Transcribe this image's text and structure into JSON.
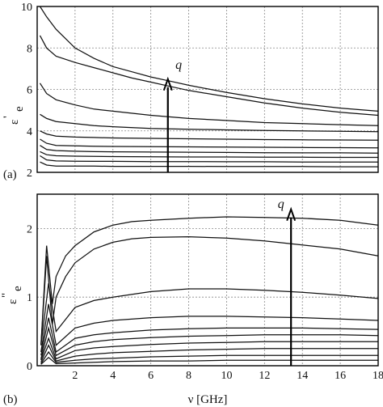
{
  "chart_data": [
    {
      "type": "line",
      "panel_label": "(a)",
      "ylabel_main": "ε",
      "ylabel_sup": "'",
      "ylabel_sub": "e",
      "xlim": [
        0,
        18
      ],
      "ylim": [
        2,
        10
      ],
      "xticks": [
        2,
        4,
        6,
        8,
        10,
        12,
        14,
        16,
        18
      ],
      "yticks": [
        2,
        4,
        6,
        8,
        10
      ],
      "grid": true,
      "annotation": {
        "text": "q",
        "arrow_x": 6.9,
        "arrow_y_from": 2.0,
        "arrow_y_to": 6.5,
        "label_x": 7.3,
        "label_y": 7.0
      },
      "series": [
        {
          "x": [
            0.15,
            0.5,
            1.0,
            2.0,
            3.0,
            4.0,
            5.0,
            6.0,
            7.0,
            8.0,
            10.0,
            12.0,
            14.0,
            16.0,
            18.0
          ],
          "values": [
            10.0,
            9.5,
            8.9,
            8.0,
            7.5,
            7.1,
            6.85,
            6.6,
            6.4,
            6.2,
            5.85,
            5.55,
            5.3,
            5.1,
            4.95
          ]
        },
        {
          "x": [
            0.15,
            0.5,
            1.0,
            2.0,
            3.0,
            4.0,
            5.0,
            6.0,
            7.0,
            8.0,
            10.0,
            12.0,
            14.0,
            16.0,
            18.0
          ],
          "values": [
            8.6,
            8.0,
            7.6,
            7.3,
            7.05,
            6.8,
            6.55,
            6.35,
            6.15,
            5.95,
            5.65,
            5.35,
            5.1,
            4.9,
            4.75
          ]
        },
        {
          "x": [
            0.15,
            0.5,
            1.0,
            2.0,
            3.0,
            4.0,
            6.0,
            8.0,
            10.0,
            12.0,
            14.0,
            16.0,
            18.0
          ],
          "values": [
            6.3,
            5.8,
            5.5,
            5.25,
            5.05,
            4.95,
            4.75,
            4.6,
            4.5,
            4.4,
            4.35,
            4.3,
            4.25
          ]
        },
        {
          "x": [
            0.15,
            0.5,
            1.0,
            2.0,
            3.0,
            4.0,
            6.0,
            8.0,
            10.0,
            12.0,
            14.0,
            16.0,
            18.0
          ],
          "values": [
            4.8,
            4.6,
            4.45,
            4.35,
            4.25,
            4.2,
            4.12,
            4.08,
            4.05,
            4.02,
            4.0,
            3.98,
            3.96
          ]
        },
        {
          "x": [
            0.15,
            0.5,
            1.0,
            2.0,
            3.0,
            4.0,
            6.0,
            8.0,
            10.0,
            12.0,
            14.0,
            16.0,
            18.0
          ],
          "values": [
            4.0,
            3.85,
            3.75,
            3.7,
            3.68,
            3.66,
            3.64,
            3.62,
            3.6,
            3.58,
            3.57,
            3.56,
            3.55
          ]
        },
        {
          "x": [
            0.15,
            0.5,
            1.0,
            2.0,
            3.0,
            4.0,
            6.0,
            8.0,
            10.0,
            12.0,
            14.0,
            16.0,
            18.0
          ],
          "values": [
            3.6,
            3.4,
            3.3,
            3.28,
            3.26,
            3.25,
            3.24,
            3.23,
            3.22,
            3.21,
            3.2,
            3.19,
            3.18
          ]
        },
        {
          "x": [
            0.15,
            0.5,
            1.0,
            2.0,
            3.0,
            4.0,
            6.0,
            8.0,
            10.0,
            12.0,
            14.0,
            16.0,
            18.0
          ],
          "values": [
            3.3,
            3.1,
            3.05,
            3.02,
            3.0,
            2.99,
            2.98,
            2.97,
            2.96,
            2.95,
            2.94,
            2.94,
            2.93
          ]
        },
        {
          "x": [
            0.15,
            0.5,
            1.0,
            2.0,
            3.0,
            4.0,
            6.0,
            8.0,
            10.0,
            12.0,
            14.0,
            16.0,
            18.0
          ],
          "values": [
            3.0,
            2.85,
            2.8,
            2.78,
            2.77,
            2.76,
            2.75,
            2.74,
            2.74,
            2.73,
            2.73,
            2.72,
            2.72
          ]
        },
        {
          "x": [
            0.15,
            0.5,
            1.0,
            2.0,
            3.0,
            4.0,
            6.0,
            8.0,
            10.0,
            12.0,
            14.0,
            16.0,
            18.0
          ],
          "values": [
            2.8,
            2.6,
            2.55,
            2.54,
            2.53,
            2.53,
            2.52,
            2.52,
            2.51,
            2.51,
            2.5,
            2.5,
            2.5
          ]
        },
        {
          "x": [
            0.15,
            0.5,
            1.0,
            2.0,
            3.0,
            4.0,
            6.0,
            8.0,
            10.0,
            12.0,
            14.0,
            16.0,
            18.0
          ],
          "values": [
            2.5,
            2.35,
            2.3,
            2.3,
            2.3,
            2.29,
            2.29,
            2.29,
            2.28,
            2.28,
            2.28,
            2.27,
            2.27
          ]
        }
      ]
    },
    {
      "type": "line",
      "panel_label": "(b)",
      "ylabel_main": "ε",
      "ylabel_sup": "\"",
      "ylabel_sub": "e",
      "xlabel": "ν [GHz]",
      "xlim": [
        0,
        18
      ],
      "ylim": [
        0,
        2.5
      ],
      "xticks": [
        2,
        4,
        6,
        8,
        10,
        12,
        14,
        16,
        18
      ],
      "yticks": [
        0,
        1,
        2
      ],
      "grid": true,
      "annotation": {
        "text": "q",
        "arrow_x": 13.4,
        "arrow_y_from": 0.0,
        "arrow_y_to": 2.28,
        "label_x": 12.7,
        "label_y": 2.3
      },
      "series": [
        {
          "x": [
            0.2,
            0.5,
            0.8,
            1.0,
            1.5,
            2.0,
            3.0,
            4.0,
            5.0,
            6.0,
            8.0,
            10.0,
            12.0,
            14.0,
            16.0,
            18.0
          ],
          "values": [
            0.3,
            1.75,
            0.9,
            1.3,
            1.6,
            1.75,
            1.95,
            2.05,
            2.1,
            2.12,
            2.15,
            2.17,
            2.16,
            2.15,
            2.12,
            2.05
          ]
        },
        {
          "x": [
            0.2,
            0.5,
            0.8,
            1.0,
            1.5,
            2.0,
            3.0,
            4.0,
            5.0,
            6.0,
            8.0,
            10.0,
            12.0,
            14.0,
            16.0,
            18.0
          ],
          "values": [
            0.3,
            1.6,
            0.6,
            1.0,
            1.3,
            1.5,
            1.7,
            1.8,
            1.85,
            1.87,
            1.88,
            1.86,
            1.82,
            1.76,
            1.7,
            1.6
          ]
        },
        {
          "x": [
            0.2,
            0.6,
            1.0,
            2.0,
            3.0,
            4.0,
            6.0,
            8.0,
            10.0,
            12.0,
            14.0,
            16.0,
            18.0
          ],
          "values": [
            0.3,
            1.2,
            0.5,
            0.85,
            0.95,
            1.0,
            1.08,
            1.12,
            1.12,
            1.1,
            1.07,
            1.03,
            0.98
          ]
        },
        {
          "x": [
            0.2,
            0.6,
            1.0,
            2.0,
            3.0,
            4.0,
            6.0,
            8.0,
            10.0,
            12.0,
            14.0,
            16.0,
            18.0
          ],
          "values": [
            0.2,
            0.9,
            0.3,
            0.55,
            0.62,
            0.66,
            0.7,
            0.72,
            0.72,
            0.71,
            0.7,
            0.68,
            0.66
          ]
        },
        {
          "x": [
            0.2,
            0.6,
            1.0,
            2.0,
            3.0,
            4.0,
            6.0,
            8.0,
            10.0,
            12.0,
            14.0,
            16.0,
            18.0
          ],
          "values": [
            0.15,
            0.7,
            0.2,
            0.4,
            0.45,
            0.48,
            0.52,
            0.54,
            0.55,
            0.55,
            0.55,
            0.54,
            0.53
          ]
        },
        {
          "x": [
            0.2,
            0.6,
            1.0,
            2.0,
            3.0,
            4.0,
            6.0,
            8.0,
            10.0,
            12.0,
            14.0,
            16.0,
            18.0
          ],
          "values": [
            0.1,
            0.55,
            0.15,
            0.3,
            0.35,
            0.38,
            0.41,
            0.43,
            0.44,
            0.45,
            0.45,
            0.45,
            0.44
          ]
        },
        {
          "x": [
            0.2,
            0.6,
            1.0,
            2.0,
            3.0,
            4.0,
            6.0,
            8.0,
            10.0,
            12.0,
            14.0,
            16.0,
            18.0
          ],
          "values": [
            0.08,
            0.4,
            0.1,
            0.22,
            0.26,
            0.28,
            0.31,
            0.33,
            0.34,
            0.35,
            0.35,
            0.35,
            0.35
          ]
        },
        {
          "x": [
            0.2,
            0.6,
            1.0,
            2.0,
            3.0,
            4.0,
            6.0,
            8.0,
            10.0,
            12.0,
            14.0,
            16.0,
            18.0
          ],
          "values": [
            0.05,
            0.3,
            0.07,
            0.14,
            0.17,
            0.19,
            0.21,
            0.23,
            0.24,
            0.25,
            0.25,
            0.25,
            0.25
          ]
        },
        {
          "x": [
            0.2,
            0.6,
            1.0,
            2.0,
            3.0,
            4.0,
            6.0,
            8.0,
            10.0,
            12.0,
            14.0,
            16.0,
            18.0
          ],
          "values": [
            0.03,
            0.2,
            0.05,
            0.08,
            0.1,
            0.11,
            0.13,
            0.14,
            0.15,
            0.15,
            0.15,
            0.15,
            0.15
          ]
        },
        {
          "x": [
            0.2,
            0.6,
            1.0,
            2.0,
            3.0,
            4.0,
            6.0,
            8.0,
            10.0,
            12.0,
            14.0,
            16.0,
            18.0
          ],
          "values": [
            0.02,
            0.12,
            0.03,
            0.04,
            0.05,
            0.06,
            0.07,
            0.07,
            0.08,
            0.08,
            0.08,
            0.08,
            0.08
          ]
        }
      ]
    }
  ]
}
